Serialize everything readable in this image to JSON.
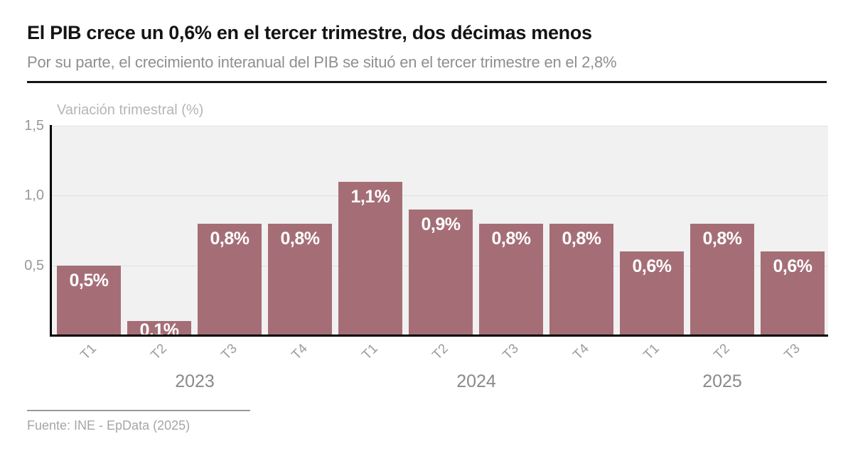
{
  "header": {
    "title": "El PIB crece un 0,6% en el tercer trimestre, dos décimas menos",
    "subtitle": "Por su parte, el crecimiento interanual del PIB se situó en el tercer trimestre en el 2,8%"
  },
  "chart_data": {
    "type": "bar",
    "axis_title": "Variación trimestral (%)",
    "categories": [
      "T1",
      "T2",
      "T3",
      "T4",
      "T1",
      "T2",
      "T3",
      "T4",
      "T1",
      "T2",
      "T3"
    ],
    "values": [
      0.5,
      0.1,
      0.8,
      0.8,
      1.1,
      0.9,
      0.8,
      0.8,
      0.6,
      0.8,
      0.6
    ],
    "value_labels": [
      "0,5%",
      "0,1%",
      "0,8%",
      "0,8%",
      "1,1%",
      "0,9%",
      "0,8%",
      "0,8%",
      "0,6%",
      "0,8%",
      "0,6%"
    ],
    "year_groups": [
      {
        "label": "2023",
        "quarters": 4
      },
      {
        "label": "2024",
        "quarters": 4
      },
      {
        "label": "2025",
        "quarters": 3
      }
    ],
    "y_ticks": [
      {
        "label": "1,5",
        "value": 1.5
      },
      {
        "label": "1,0",
        "value": 1.0
      },
      {
        "label": "0,5",
        "value": 0.5
      }
    ],
    "ylim": [
      0,
      1.5
    ],
    "grid": true,
    "legend": "none",
    "colors": {
      "bar": "#a56e76",
      "plot_background": "#f1f1f1",
      "gridline": "#e1e1e1",
      "axis": "#000000",
      "bar_label": "#ffffff"
    }
  },
  "footer": {
    "source": "Fuente: INE - EpData (2025)"
  }
}
